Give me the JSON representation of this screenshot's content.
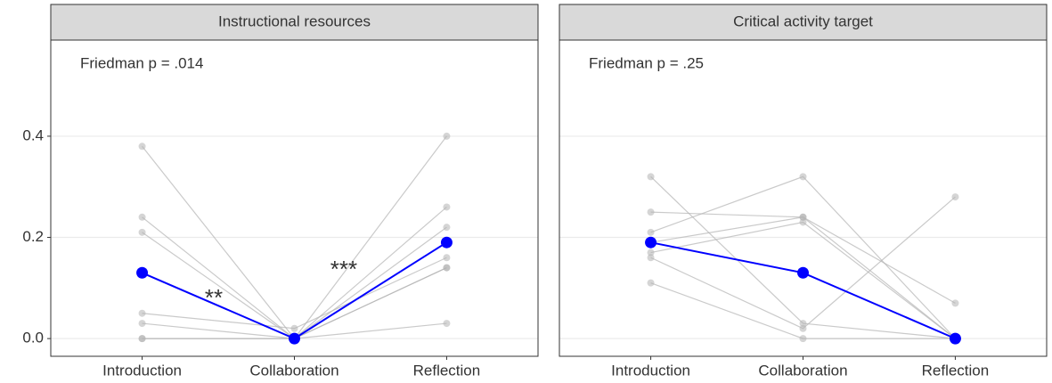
{
  "chart_data": [
    {
      "type": "line",
      "title": "Instructional resources",
      "annotation": "Friedman p = .014",
      "significance": [
        "**",
        "***"
      ],
      "categories": [
        "Introduction",
        "Collaboration",
        "Reflection"
      ],
      "ylim": [
        -0.035,
        0.59
      ],
      "yticks": [
        {
          "value": 0,
          "label": "0.0"
        },
        {
          "value": 0.2,
          "label": "0.2"
        },
        {
          "value": 0.4,
          "label": "0.4"
        }
      ],
      "grid": true,
      "series": [
        {
          "color": "#b3b3b3",
          "values": [
            0.38,
            0,
            0.26
          ]
        },
        {
          "color": "#b3b3b3",
          "values": [
            0.24,
            0,
            0.22
          ]
        },
        {
          "color": "#b3b3b3",
          "values": [
            0.21,
            0,
            0.4
          ]
        },
        {
          "color": "#b3b3b3",
          "values": [
            0.05,
            0.02,
            0.16
          ]
        },
        {
          "color": "#b3b3b3",
          "values": [
            0.03,
            0,
            0.14
          ]
        },
        {
          "color": "#b3b3b3",
          "values": [
            0,
            0,
            0.03
          ]
        },
        {
          "color": "#b3b3b3",
          "values": [
            0,
            0,
            0.14
          ]
        },
        {
          "color": "#0000ff",
          "values": [
            0.13,
            0,
            0.19
          ]
        }
      ]
    },
    {
      "type": "line",
      "title": "Critical activity target",
      "annotation": "Friedman p = .25",
      "categories": [
        "Introduction",
        "Collaboration",
        "Reflection"
      ],
      "ylim": [
        -0.035,
        0.59
      ],
      "yticks": [
        {
          "value": 0,
          "label": "0.0"
        },
        {
          "value": 0.2,
          "label": "0.2"
        },
        {
          "value": 0.4,
          "label": "0.4"
        }
      ],
      "grid": true,
      "series": [
        {
          "color": "#b3b3b3",
          "values": [
            0.32,
            0.03,
            0
          ]
        },
        {
          "color": "#b3b3b3",
          "values": [
            0.25,
            0.24,
            0
          ]
        },
        {
          "color": "#b3b3b3",
          "values": [
            0.21,
            0.32,
            0
          ]
        },
        {
          "color": "#b3b3b3",
          "values": [
            0.19,
            0.24,
            0.07
          ]
        },
        {
          "color": "#b3b3b3",
          "values": [
            0.17,
            0.23,
            0
          ]
        },
        {
          "color": "#b3b3b3",
          "values": [
            0.16,
            0.02,
            0.28
          ]
        },
        {
          "color": "#b3b3b3",
          "values": [
            0.11,
            0,
            0
          ]
        },
        {
          "color": "#0000ff",
          "values": [
            0.19,
            0.13,
            0
          ]
        }
      ]
    }
  ]
}
